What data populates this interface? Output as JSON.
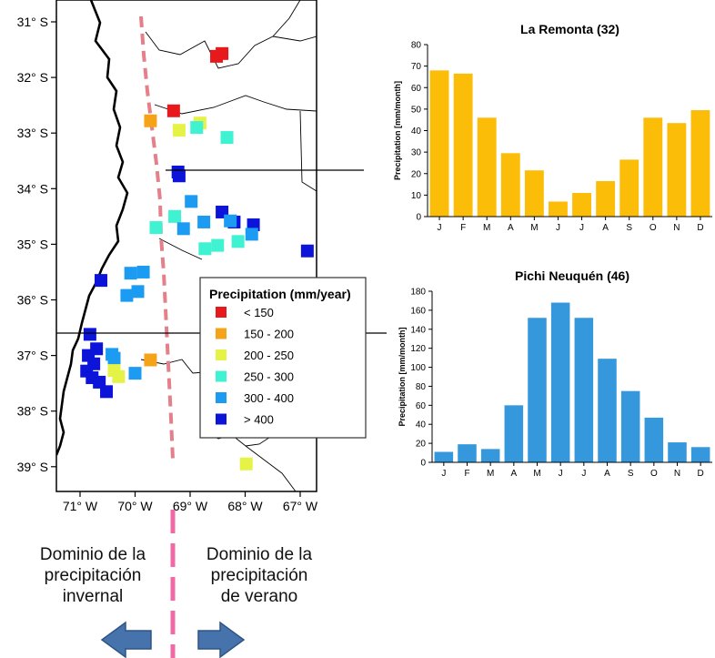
{
  "map": {
    "lat_ticks": [
      "31° S",
      "32° S",
      "33° S",
      "34° S",
      "35° S",
      "36° S",
      "37° S",
      "38° S",
      "39° S"
    ],
    "lon_ticks": [
      "71° W",
      "70° W",
      "69° W",
      "68° W",
      "67° W"
    ],
    "legend": {
      "title": "Precipitation (mm/year)",
      "classes": [
        {
          "label": "< 150",
          "color": "#e8191c"
        },
        {
          "label": "150 - 200",
          "color": "#f5a319"
        },
        {
          "label": "200 - 250",
          "color": "#e5f246"
        },
        {
          "label": "250 - 300",
          "color": "#3ef2d2"
        },
        {
          "label": "300 - 400",
          "color": "#1b9cf2"
        },
        {
          "label": "> 400",
          "color": "#0b14d8"
        }
      ]
    },
    "stations": [
      {
        "lon": -68.52,
        "lat": -31.62,
        "cls": 0
      },
      {
        "lon": -68.42,
        "lat": -31.57,
        "cls": 0
      },
      {
        "lon": -69.3,
        "lat": -32.6,
        "cls": 0
      },
      {
        "lon": -69.72,
        "lat": -32.78,
        "cls": 1
      },
      {
        "lon": -69.2,
        "lat": -32.95,
        "cls": 2
      },
      {
        "lon": -68.82,
        "lat": -32.82,
        "cls": 2
      },
      {
        "lon": -68.88,
        "lat": -32.9,
        "cls": 3
      },
      {
        "lon": -68.33,
        "lat": -33.08,
        "cls": 3
      },
      {
        "lon": -69.22,
        "lat": -33.7,
        "cls": 5
      },
      {
        "lon": -69.2,
        "lat": -33.77,
        "cls": 5
      },
      {
        "lon": -68.98,
        "lat": -34.23,
        "cls": 4
      },
      {
        "lon": -69.62,
        "lat": -34.7,
        "cls": 3
      },
      {
        "lon": -69.28,
        "lat": -34.5,
        "cls": 3
      },
      {
        "lon": -69.12,
        "lat": -34.72,
        "cls": 4
      },
      {
        "lon": -68.75,
        "lat": -34.6,
        "cls": 4
      },
      {
        "lon": -68.42,
        "lat": -34.42,
        "cls": 5
      },
      {
        "lon": -68.2,
        "lat": -34.6,
        "cls": 5
      },
      {
        "lon": -68.27,
        "lat": -34.58,
        "cls": 4
      },
      {
        "lon": -67.85,
        "lat": -34.65,
        "cls": 5
      },
      {
        "lon": -67.88,
        "lat": -34.82,
        "cls": 4
      },
      {
        "lon": -68.73,
        "lat": -35.08,
        "cls": 3
      },
      {
        "lon": -68.5,
        "lat": -35.02,
        "cls": 3
      },
      {
        "lon": -68.13,
        "lat": -34.95,
        "cls": 3
      },
      {
        "lon": -66.87,
        "lat": -35.12,
        "cls": 5
      },
      {
        "lon": -70.62,
        "lat": -35.65,
        "cls": 5
      },
      {
        "lon": -70.08,
        "lat": -35.52,
        "cls": 4
      },
      {
        "lon": -69.85,
        "lat": -35.5,
        "cls": 4
      },
      {
        "lon": -70.15,
        "lat": -35.92,
        "cls": 4
      },
      {
        "lon": -69.95,
        "lat": -35.85,
        "cls": 4
      },
      {
        "lon": -70.82,
        "lat": -36.62,
        "cls": 5
      },
      {
        "lon": -70.7,
        "lat": -36.88,
        "cls": 5
      },
      {
        "lon": -70.85,
        "lat": -37.0,
        "cls": 5
      },
      {
        "lon": -70.75,
        "lat": -37.15,
        "cls": 5
      },
      {
        "lon": -70.88,
        "lat": -37.28,
        "cls": 5
      },
      {
        "lon": -70.78,
        "lat": -37.4,
        "cls": 5
      },
      {
        "lon": -70.65,
        "lat": -37.48,
        "cls": 5
      },
      {
        "lon": -70.52,
        "lat": -37.65,
        "cls": 5
      },
      {
        "lon": -70.42,
        "lat": -36.98,
        "cls": 4
      },
      {
        "lon": -70.38,
        "lat": -37.05,
        "cls": 4
      },
      {
        "lon": -70.38,
        "lat": -37.27,
        "cls": 2
      },
      {
        "lon": -70.3,
        "lat": -37.38,
        "cls": 2
      },
      {
        "lon": -70.0,
        "lat": -37.32,
        "cls": 4
      },
      {
        "lon": -69.72,
        "lat": -37.08,
        "cls": 1
      },
      {
        "lon": -67.98,
        "lat": -38.95,
        "cls": 2
      }
    ]
  },
  "chart_data": [
    {
      "type": "bar",
      "title": "La Remonta (32)",
      "ylabel": "Precipitation [mm/month]",
      "categories": [
        "J",
        "F",
        "M",
        "A",
        "M",
        "J",
        "J",
        "A",
        "S",
        "O",
        "N",
        "D"
      ],
      "values": [
        68,
        66.5,
        46,
        29.5,
        21.5,
        7,
        11,
        16.5,
        26.5,
        46,
        43.5,
        49.5
      ],
      "ylim": [
        0,
        80
      ],
      "yticks": [
        0,
        10,
        20,
        30,
        40,
        50,
        60,
        70,
        80
      ],
      "color": "#fbbd08"
    },
    {
      "type": "bar",
      "title": "Pichi Neuquén (46)",
      "ylabel": "Precipitation [mm/month]",
      "categories": [
        "J",
        "F",
        "M",
        "A",
        "M",
        "J",
        "J",
        "A",
        "S",
        "O",
        "N",
        "D"
      ],
      "values": [
        11,
        19,
        14,
        60,
        152,
        168,
        152,
        109,
        75,
        47,
        21,
        16
      ],
      "ylim": [
        0,
        180
      ],
      "yticks": [
        0,
        20,
        40,
        60,
        80,
        100,
        120,
        140,
        160,
        180
      ],
      "color": "#3598dd"
    }
  ],
  "annotations": {
    "left": [
      "Dominio de la",
      "precipitación",
      "invernal"
    ],
    "right": [
      "Dominio de la",
      "precipitación",
      "de verano"
    ]
  }
}
